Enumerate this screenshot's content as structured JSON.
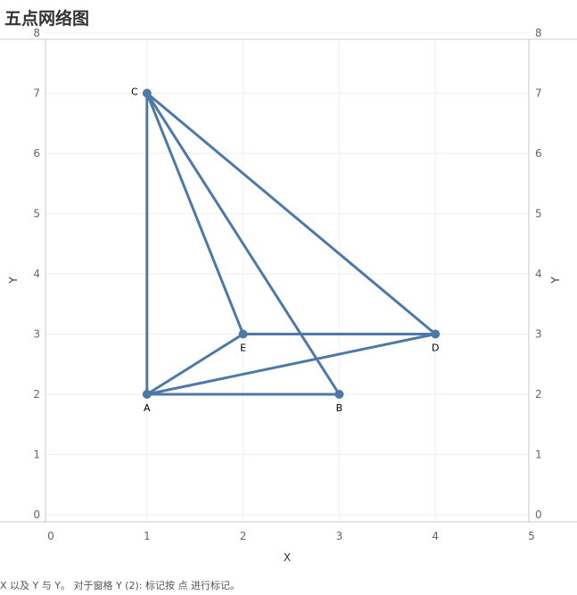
{
  "title": "五点网络图",
  "caption": "X 以及 Y 与 Y。 对于窗格 Y (2): 标记按 点 进行标记。",
  "chart_data": {
    "type": "scatter",
    "title": "五点网络图",
    "xlabel": "X",
    "ylabel": "Y",
    "ylabel_right": "Y",
    "xlim": [
      0,
      5
    ],
    "ylim": [
      0,
      8
    ],
    "xticks": [
      0,
      1,
      2,
      3,
      4,
      5
    ],
    "yticks": [
      0,
      1,
      2,
      3,
      4,
      5,
      6,
      7,
      8
    ],
    "grid": true,
    "color": "#4e79a7",
    "points": [
      {
        "label": "A",
        "x": 1,
        "y": 2
      },
      {
        "label": "B",
        "x": 3,
        "y": 2
      },
      {
        "label": "C",
        "x": 1,
        "y": 7
      },
      {
        "label": "D",
        "x": 4,
        "y": 3
      },
      {
        "label": "E",
        "x": 2,
        "y": 3
      }
    ],
    "edges": [
      [
        "A",
        "B"
      ],
      [
        "A",
        "C"
      ],
      [
        "A",
        "D"
      ],
      [
        "A",
        "E"
      ],
      [
        "C",
        "B"
      ],
      [
        "C",
        "D"
      ],
      [
        "C",
        "E"
      ],
      [
        "E",
        "D"
      ]
    ]
  }
}
